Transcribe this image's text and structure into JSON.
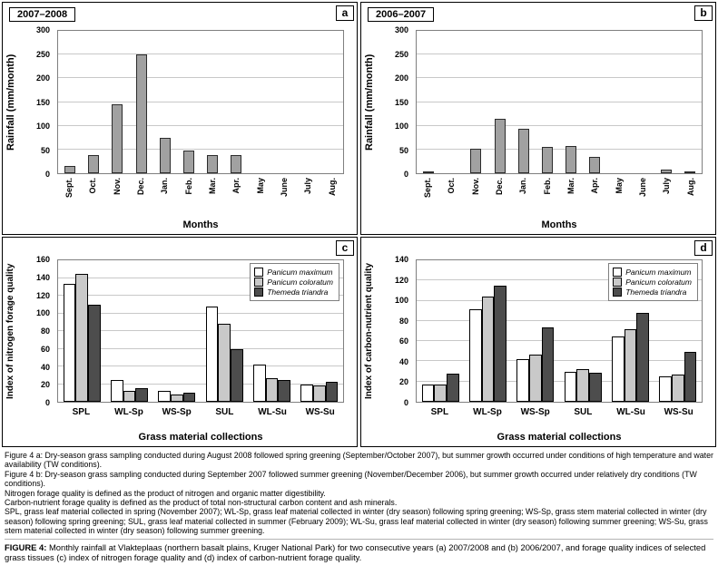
{
  "chart_data": [
    {
      "id": "a",
      "type": "bar",
      "title": "2007–2008",
      "panel_label": "a",
      "ylabel": "Rainfall (mm/month)",
      "xlabel": "Months",
      "ylim": [
        0,
        300
      ],
      "ytick_step": 50,
      "grid": true,
      "categories": [
        "Sept.",
        "Oct.",
        "Nov.",
        "Dec.",
        "Jan.",
        "Feb.",
        "Mar.",
        "Apr.",
        "May",
        "June",
        "July",
        "Aug."
      ],
      "values": [
        15,
        38,
        145,
        250,
        75,
        47,
        38,
        38,
        0,
        0,
        0,
        0
      ],
      "bar_color": "#a1a1a1"
    },
    {
      "id": "b",
      "type": "bar",
      "title": "2006–2007",
      "panel_label": "b",
      "ylabel": "Rainfall (mm/month)",
      "xlabel": "Months",
      "ylim": [
        0,
        300
      ],
      "ytick_step": 50,
      "grid": true,
      "categories": [
        "Sept.",
        "Oct.",
        "Nov.",
        "Dec.",
        "Jan.",
        "Feb.",
        "Mar.",
        "Apr.",
        "May",
        "June",
        "July",
        "Aug."
      ],
      "values": [
        3,
        0,
        52,
        114,
        94,
        56,
        57,
        34,
        0,
        0,
        8,
        2
      ],
      "bar_color": "#a1a1a1"
    },
    {
      "id": "c",
      "type": "bar",
      "title": "",
      "panel_label": "c",
      "ylabel": "Index of nitrogen forage quality",
      "xlabel": "Grass material collections",
      "ylim": [
        0,
        160
      ],
      "ytick_step": 20,
      "grid": true,
      "legend_position": "top-right",
      "categories": [
        "SPL",
        "WL-Sp",
        "WS-Sp",
        "SUL",
        "WL-Su",
        "WS-Su"
      ],
      "series": [
        {
          "name": "Panicum maximum",
          "color": "#ffffff",
          "values": [
            133,
            25,
            12,
            108,
            42,
            19
          ]
        },
        {
          "name": "Panicum coloratum",
          "color": "#c9c9c9",
          "values": [
            145,
            12,
            8,
            88,
            27,
            18
          ]
        },
        {
          "name": "Themeda triandra",
          "color": "#4d4d4d",
          "values": [
            110,
            15,
            10,
            60,
            25,
            23
          ]
        }
      ]
    },
    {
      "id": "d",
      "type": "bar",
      "title": "",
      "panel_label": "d",
      "ylabel": "Index of carbon-nutrient quality",
      "xlabel": "Grass material collections",
      "ylim": [
        0,
        140
      ],
      "ytick_step": 20,
      "grid": true,
      "legend_position": "top-right",
      "categories": [
        "SPL",
        "WL-Sp",
        "WS-Sp",
        "SUL",
        "WL-Su",
        "WS-Su"
      ],
      "series": [
        {
          "name": "Panicum maximum",
          "color": "#ffffff",
          "values": [
            17,
            92,
            42,
            30,
            65,
            25
          ]
        },
        {
          "name": "Panicum coloratum",
          "color": "#c9c9c9",
          "values": [
            17,
            104,
            47,
            32,
            72,
            27
          ]
        },
        {
          "name": "Themeda triandra",
          "color": "#4d4d4d",
          "values": [
            28,
            115,
            74,
            29,
            88,
            49
          ]
        }
      ]
    }
  ],
  "caption": {
    "notes": [
      "Figure 4 a: Dry-season grass sampling conducted during August 2008 followed spring greening (September/October 2007), but summer growth occurred under conditions of high temperature and water availability (TW conditions).",
      "Figure 4 b: Dry-season grass sampling conducted during September 2007 followed summer greening (November/December 2006), but summer growth occurred under relatively dry conditions (TW conditions).",
      "Nitrogen forage quality is defined as the product of nitrogen and organic matter digestibility.",
      "Carbon-nutrient forage quality is defined as the product of total non-structural carbon content and ash minerals.",
      "SPL, grass leaf material collected in spring (November 2007); WL-Sp, grass leaf material collected in winter (dry season) following spring greening; WS-Sp, grass stem material collected in winter (dry season) following spring greening; SUL, grass leaf material collected in summer (February 2009); WL-Su, grass leaf material collected in winter (dry season) following summer greening; WS-Su, grass stem material collected in winter (dry season) following summer greening."
    ],
    "figure_label": "FIGURE 4:",
    "figure_text": "Monthly rainfall at Vlakteplaas (northern basalt plains, Kruger National Park) for two consecutive years (a) 2007/2008 and (b) 2006/2007, and forage quality indices of selected grass tissues (c) index of nitrogen forage quality and (d) index of carbon-nutrient forage quality."
  }
}
